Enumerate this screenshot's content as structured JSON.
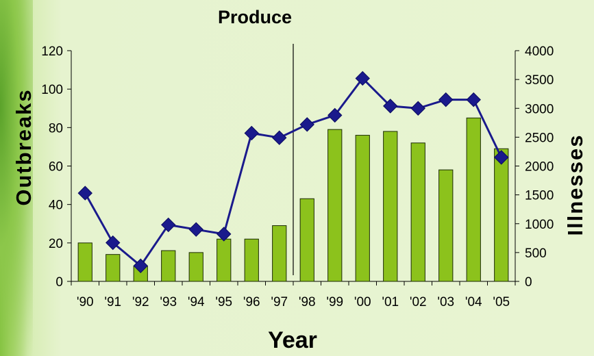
{
  "chart_data": {
    "type": "bar+line",
    "title": "Produce",
    "xlabel": "Year",
    "ylabel_left": "Outbreaks",
    "ylabel_right": "Illnesses",
    "categories": [
      "'90",
      "'91",
      "'92",
      "'93",
      "'94",
      "'95",
      "'96",
      "'97",
      "'98",
      "'99",
      "'00",
      "'01",
      "'02",
      "'03",
      "'04",
      "'05"
    ],
    "left_ticks": [
      "0",
      "20",
      "40",
      "60",
      "80",
      "100",
      "120"
    ],
    "right_ticks": [
      "0",
      "500",
      "1000",
      "1500",
      "2000",
      "2500",
      "3000",
      "3500",
      "4000"
    ],
    "ylim_left": [
      0,
      120
    ],
    "ylim_right": [
      0,
      4000
    ],
    "series": [
      {
        "type": "bar",
        "axis": "left",
        "color": "#8cc21c",
        "values": [
          20,
          14,
          8,
          16,
          15,
          22,
          22,
          29,
          43,
          79,
          76,
          78,
          72,
          58,
          85,
          69
        ]
      },
      {
        "type": "line",
        "axis": "right",
        "color": "#1a1a8c",
        "values": [
          1530,
          670,
          270,
          980,
          900,
          820,
          2570,
          2490,
          2720,
          2880,
          3520,
          3040,
          3000,
          3150,
          3150,
          2150
        ]
      }
    ],
    "vline_after_index": 7
  }
}
